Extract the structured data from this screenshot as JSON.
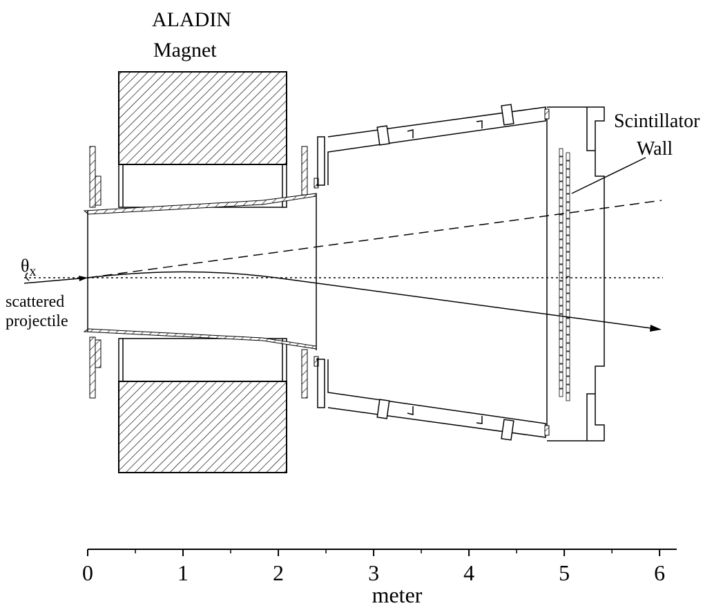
{
  "labels": {
    "magnet_title": "ALADIN",
    "magnet_subtitle": "Magnet",
    "wall_title": "Scintillator",
    "wall_subtitle": "Wall",
    "angle_symbol": "θ",
    "angle_subscript": "x",
    "trajectory_line1": "scattered",
    "trajectory_line2": "projectile"
  },
  "axis": {
    "label": "meter",
    "xlim": [
      0,
      6.18
    ],
    "ticks": [
      0,
      1,
      2,
      3,
      4,
      5,
      6
    ],
    "minor_ticks": [
      0.5,
      1.5,
      2.5,
      3.5,
      4.5,
      5.5
    ]
  }
}
